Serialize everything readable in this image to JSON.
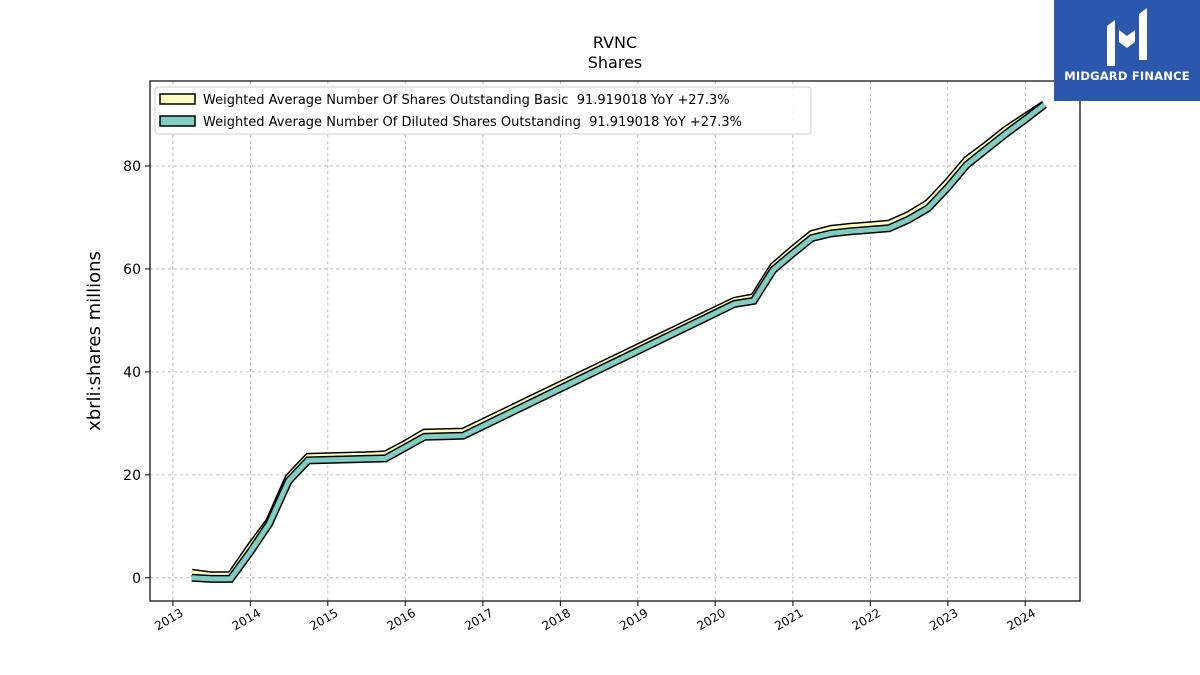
{
  "brand": {
    "name": "MIDGARD FINANCE",
    "bg_color": "#2b57ad"
  },
  "chart_data": {
    "type": "line",
    "title": "RVNC",
    "subtitle": "Shares",
    "ylabel": "xbrli:shares millions",
    "xlabel": "",
    "x_ticks": [
      "2013",
      "2014",
      "2015",
      "2016",
      "2017",
      "2018",
      "2019",
      "2020",
      "2021",
      "2022",
      "2023",
      "2024"
    ],
    "y_ticks": [
      "0",
      "20",
      "40",
      "60",
      "80"
    ],
    "xlim": [
      "2012-09-15",
      "2024-09-15"
    ],
    "ylim": [
      -4.5,
      96.5
    ],
    "grid": true,
    "legend_position": "top-left",
    "series": [
      {
        "name": "Weighted Average Number Of Shares Outstanding Basic",
        "legend_label": "Weighted Average Number Of Shares Outstanding Basic  91.919018 YoY +27.3%",
        "color": "#ffffbf",
        "x": [
          "2013-03-31",
          "2013-06-30",
          "2013-09-30",
          "2013-12-31",
          "2014-03-31",
          "2014-06-30",
          "2014-09-30",
          "2014-12-31",
          "2015-03-31",
          "2015-06-30",
          "2015-09-30",
          "2015-12-31",
          "2016-03-31",
          "2016-06-30",
          "2016-09-30",
          "2020-03-31",
          "2020-06-30",
          "2020-09-30",
          "2020-12-31",
          "2021-03-31",
          "2021-06-30",
          "2021-09-30",
          "2021-12-31",
          "2022-03-31",
          "2022-06-30",
          "2022-09-30",
          "2022-12-31",
          "2023-03-31",
          "2023-06-30",
          "2023-09-30",
          "2023-12-31",
          "2024-03-31"
        ],
        "y": [
          1.0,
          0.5,
          0.5,
          6.0,
          11.0,
          19.5,
          23.5,
          23.6,
          23.7,
          23.8,
          24.0,
          26.0,
          28.2,
          28.3,
          28.4,
          53.8,
          54.5,
          60.5,
          63.8,
          66.8,
          67.8,
          68.2,
          68.5,
          68.8,
          70.5,
          72.8,
          76.8,
          81.2,
          84.0,
          87.0,
          89.5,
          92.0
        ]
      },
      {
        "name": "Weighted Average Number Of Diluted Shares Outstanding",
        "legend_label": "Weighted Average Number Of Diluted Shares Outstanding  91.919018 YoY +27.3%",
        "color": "#80cdc1",
        "x": [
          "2013-03-31",
          "2013-06-30",
          "2013-09-30",
          "2013-12-31",
          "2014-03-31",
          "2014-06-30",
          "2014-09-30",
          "2014-12-31",
          "2015-03-31",
          "2015-06-30",
          "2015-09-30",
          "2015-12-31",
          "2016-03-31",
          "2016-06-30",
          "2016-09-30",
          "2020-03-31",
          "2020-06-30",
          "2020-09-30",
          "2020-12-31",
          "2021-03-31",
          "2021-06-30",
          "2021-09-30",
          "2021-12-31",
          "2022-03-31",
          "2022-06-30",
          "2022-09-30",
          "2022-12-31",
          "2023-03-31",
          "2023-06-30",
          "2023-09-30",
          "2023-12-31",
          "2024-03-31"
        ],
        "y": [
          0.0,
          -0.2,
          -0.2,
          5.0,
          10.5,
          18.8,
          22.8,
          22.9,
          23.0,
          23.1,
          23.2,
          25.3,
          27.4,
          27.5,
          27.6,
          53.2,
          53.8,
          59.8,
          63.0,
          66.0,
          66.9,
          67.3,
          67.6,
          67.9,
          69.6,
          71.8,
          75.8,
          80.2,
          83.2,
          86.2,
          89.0,
          91.9
        ]
      }
    ]
  }
}
